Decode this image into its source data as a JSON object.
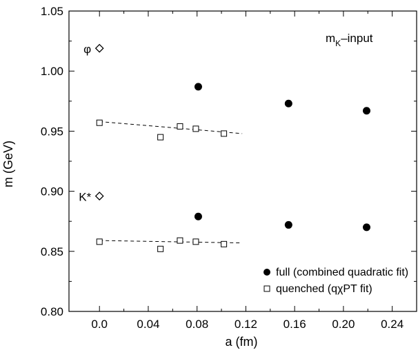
{
  "chart_data": {
    "type": "scatter",
    "title": "",
    "annotation": {
      "main": "m",
      "subscript": "K",
      "suffix": "–input"
    },
    "xlabel": "a (fm)",
    "ylabel": "m (GeV)",
    "xlim": [
      -0.025,
      0.26
    ],
    "ylim": [
      0.8,
      1.05
    ],
    "x_ticks": [
      0.0,
      0.04,
      0.08,
      0.12,
      0.16,
      0.2,
      0.24
    ],
    "x_tick_labels": [
      "0.0",
      "0.04",
      "0.08",
      "0.12",
      "0.16",
      "0.20",
      "0.24"
    ],
    "y_ticks": [
      0.8,
      0.85,
      0.9,
      0.95,
      1.0,
      1.05
    ],
    "y_tick_labels": [
      "0.80",
      "0.85",
      "0.90",
      "0.95",
      "1.00",
      "1.05"
    ],
    "grid": false,
    "legend_position": "bottom-right",
    "series": [
      {
        "name": "full (combined quadratic fit)",
        "marker": "filled-circle",
        "points": [
          {
            "x": 0.081,
            "y": 0.987,
            "err": 0.007
          },
          {
            "x": 0.155,
            "y": 0.973,
            "err": 0.003
          },
          {
            "x": 0.219,
            "y": 0.967,
            "err": 0.003
          },
          {
            "x": 0.081,
            "y": 0.879,
            "err": 0.004
          },
          {
            "x": 0.155,
            "y": 0.872,
            "err": 0.002
          },
          {
            "x": 0.219,
            "y": 0.87,
            "err": 0.002
          }
        ]
      },
      {
        "name": "quenched (qχPT fit)",
        "marker": "open-square",
        "points": [
          {
            "x": 0.0,
            "y": 0.957,
            "err": 0.013
          },
          {
            "x": 0.05,
            "y": 0.945,
            "err": 0.01
          },
          {
            "x": 0.066,
            "y": 0.954,
            "err": 0.006
          },
          {
            "x": 0.079,
            "y": 0.952,
            "err": 0.004
          },
          {
            "x": 0.102,
            "y": 0.948,
            "err": 0.004
          },
          {
            "x": 0.0,
            "y": 0.858,
            "err": 0.008
          },
          {
            "x": 0.05,
            "y": 0.852,
            "err": 0.007
          },
          {
            "x": 0.066,
            "y": 0.859,
            "err": 0.004
          },
          {
            "x": 0.079,
            "y": 0.858,
            "err": 0.003
          },
          {
            "x": 0.102,
            "y": 0.856,
            "err": 0.002
          }
        ]
      }
    ],
    "fit_lines": [
      {
        "x": [
          0.0,
          0.117
        ],
        "y": [
          0.958,
          0.948
        ]
      },
      {
        "x": [
          0.0,
          0.117
        ],
        "y": [
          0.859,
          0.857
        ]
      }
    ],
    "experimental": [
      {
        "label": "φ",
        "x": 0.0,
        "y": 1.019
      },
      {
        "label": "K*",
        "x": 0.0,
        "y": 0.896
      }
    ]
  }
}
